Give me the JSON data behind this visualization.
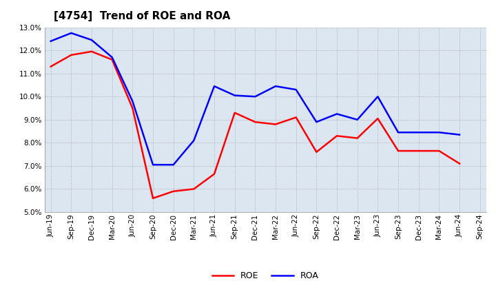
{
  "title": "[4754]  Trend of ROE and ROA",
  "x_labels": [
    "Jun-19",
    "Sep-19",
    "Dec-19",
    "Mar-20",
    "Jun-20",
    "Sep-20",
    "Dec-20",
    "Mar-21",
    "Jun-21",
    "Sep-21",
    "Dec-21",
    "Mar-22",
    "Jun-22",
    "Sep-22",
    "Dec-22",
    "Mar-23",
    "Jun-23",
    "Sep-23",
    "Dec-23",
    "Mar-24",
    "Jun-24",
    "Sep-24"
  ],
  "roe": [
    11.3,
    11.8,
    11.95,
    11.6,
    9.5,
    5.6,
    5.9,
    6.0,
    6.65,
    9.3,
    8.9,
    8.8,
    9.1,
    7.6,
    8.3,
    8.2,
    9.05,
    7.65,
    7.65,
    7.65,
    7.1,
    null
  ],
  "roa": [
    12.4,
    12.75,
    12.45,
    11.7,
    9.8,
    7.05,
    7.05,
    8.1,
    10.45,
    10.05,
    10.0,
    10.45,
    10.3,
    8.9,
    9.25,
    9.0,
    10.0,
    8.45,
    8.45,
    8.45,
    8.35,
    null
  ],
  "ylim": [
    5.0,
    13.0
  ],
  "yticks": [
    5.0,
    6.0,
    7.0,
    8.0,
    9.0,
    10.0,
    11.0,
    12.0,
    13.0
  ],
  "roe_color": "#ff0000",
  "roa_color": "#0000ff",
  "line_width": 1.8,
  "bg_color": "#ffffff",
  "plot_bg_color": "#dce6f1",
  "grid_color": "#aaaaaa",
  "title_fontsize": 11,
  "tick_fontsize": 7.5,
  "legend_fontsize": 9
}
